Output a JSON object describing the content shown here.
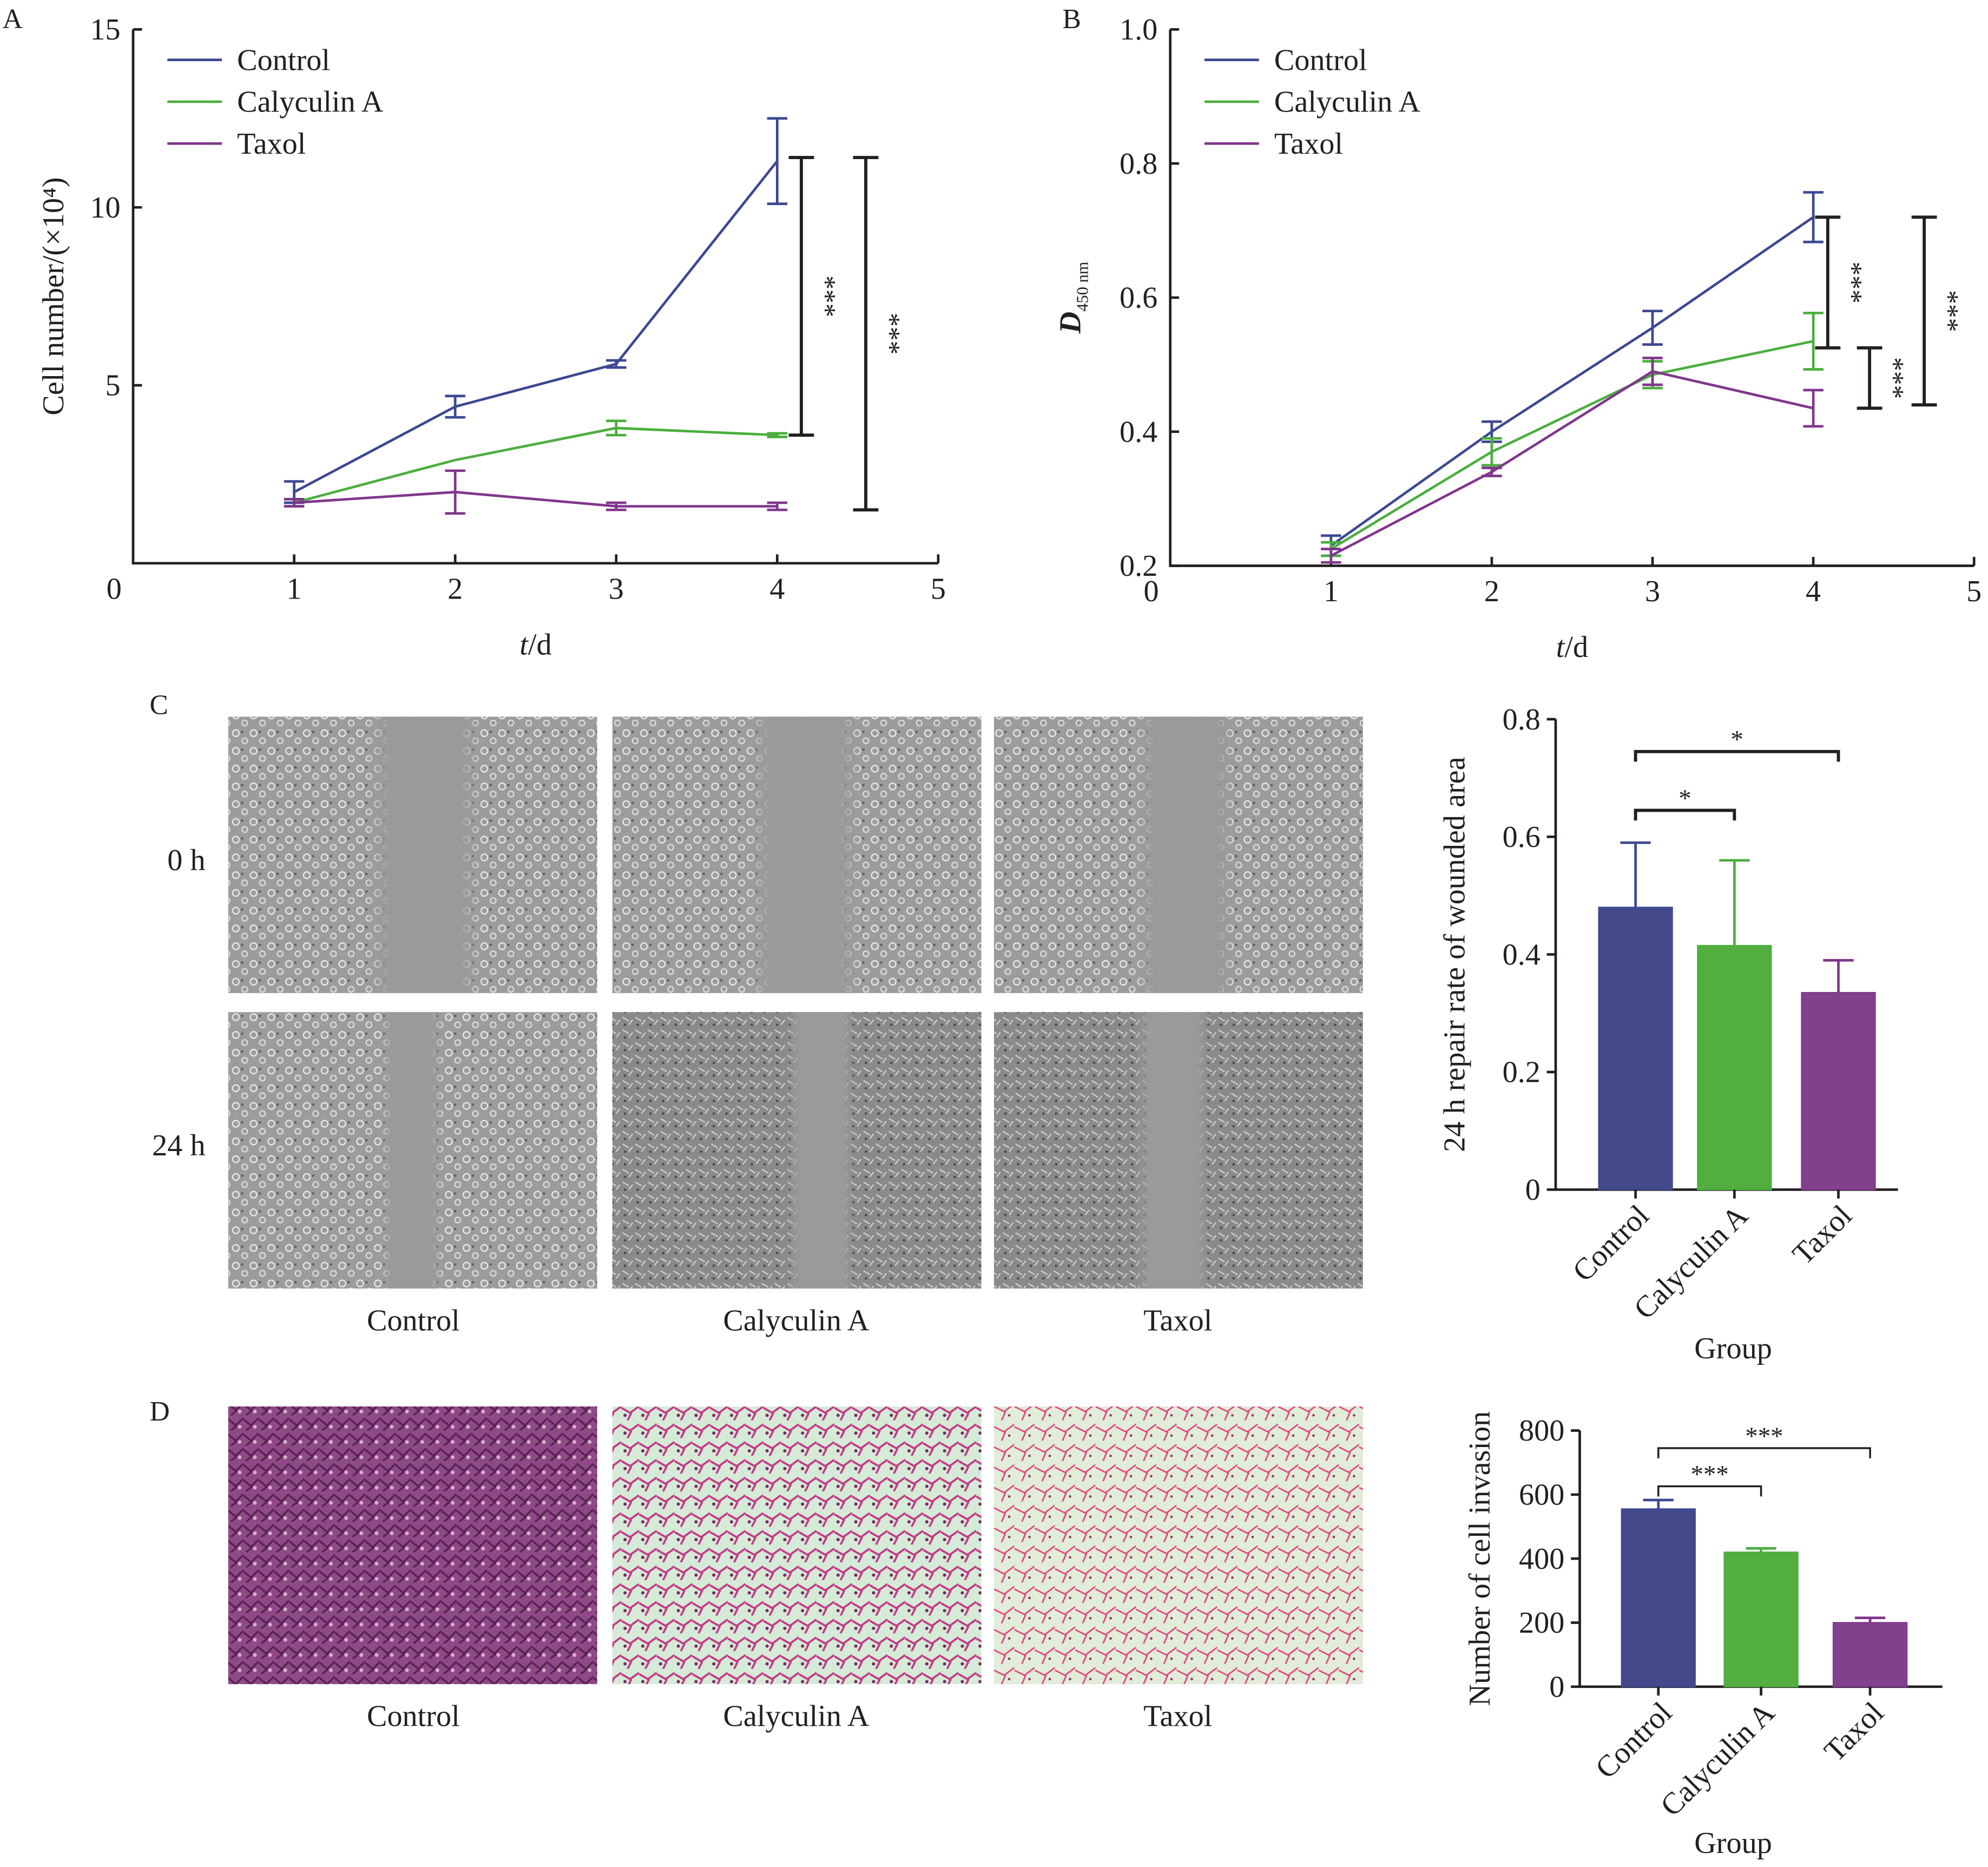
{
  "panel_labels": [
    "A",
    "B",
    "C",
    "D"
  ],
  "colors": {
    "Control": "#3c4891",
    "Calyculin A": "#4bae3e",
    "Taxol": "#80368c",
    "axis": "#231f20"
  },
  "images": {
    "row_labels": [
      "0 h",
      "24 h"
    ],
    "wound_columns": [
      "Control",
      "Calyculin A",
      "Taxol"
    ],
    "invasion_columns": [
      "Control",
      "Calyculin A",
      "Taxol"
    ]
  },
  "chart_data": [
    {
      "id": "A",
      "type": "line",
      "xlabel_italic": "t",
      "xlabel_rest": "/d",
      "ylabel": "Cell number/(×10⁴)",
      "xlim": [
        0,
        5
      ],
      "ylim": [
        0,
        15
      ],
      "xticks": [
        "0",
        "1",
        "2",
        "3",
        "4",
        "5"
      ],
      "yticks": [
        {
          "v": 5,
          "t": "5"
        },
        {
          "v": 10,
          "t": "10"
        },
        {
          "v": 15,
          "t": "15"
        }
      ],
      "x": [
        1,
        2,
        3,
        4
      ],
      "legend": "top-left",
      "series": [
        {
          "name": "Control",
          "values": [
            2.0,
            4.4,
            5.6,
            11.3
          ],
          "err": [
            0.3,
            0.3,
            0.1,
            1.2
          ]
        },
        {
          "name": "Calyculin A",
          "values": [
            1.7,
            2.9,
            3.8,
            3.6
          ],
          "err": [
            0.1,
            0,
            0.2,
            0.05
          ]
        },
        {
          "name": "Taxol",
          "values": [
            1.7,
            2.0,
            1.6,
            1.6
          ],
          "err": [
            0.1,
            0.6,
            0.1,
            0.1
          ]
        }
      ],
      "annotations": [
        {
          "x": 4.15,
          "y1": 3.6,
          "y2": 11.4,
          "label": "***"
        },
        {
          "x": 4.55,
          "y1": 1.5,
          "y2": 11.4,
          "label": "***"
        }
      ]
    },
    {
      "id": "B",
      "type": "line",
      "xlabel_italic": "t",
      "xlabel_rest": "/d",
      "ylabel": "D",
      "ylabel_sub": "450 nm",
      "xlim": [
        0,
        5
      ],
      "ylim": [
        0.2,
        1.0
      ],
      "xticks": [
        "0",
        "1",
        "2",
        "3",
        "4",
        "5"
      ],
      "yticks": [
        {
          "v": 0.2,
          "t": "0.2"
        },
        {
          "v": 0.4,
          "t": "0.4"
        },
        {
          "v": 0.6,
          "t": "0.6"
        },
        {
          "v": 0.8,
          "t": "0.8"
        },
        {
          "v": 1.0,
          "t": "1.0"
        }
      ],
      "x": [
        1,
        2,
        3,
        4
      ],
      "legend": "top-left",
      "series": [
        {
          "name": "Control",
          "values": [
            0.23,
            0.4,
            0.555,
            0.72
          ],
          "err": [
            0.015,
            0.015,
            0.025,
            0.037
          ]
        },
        {
          "name": "Calyculin A",
          "values": [
            0.225,
            0.37,
            0.485,
            0.535
          ],
          "err": [
            0.01,
            0.02,
            0.02,
            0.042
          ]
        },
        {
          "name": "Taxol",
          "values": [
            0.215,
            0.34,
            0.49,
            0.435
          ],
          "err": [
            0.01,
            0.006,
            0.02,
            0.027
          ]
        }
      ],
      "annotations": [
        {
          "x": 4.09,
          "y1": 0.525,
          "y2": 0.72,
          "label": "***"
        },
        {
          "x": 4.35,
          "y1": 0.435,
          "y2": 0.525,
          "label": "***"
        },
        {
          "x": 4.69,
          "y1": 0.44,
          "y2": 0.72,
          "label": "***"
        }
      ]
    },
    {
      "id": "C",
      "type": "bar",
      "xlabel": "Group",
      "ylabel": "24 h repair rate of wounded area",
      "ylim": [
        0,
        0.8
      ],
      "yticks": [
        {
          "v": 0,
          "t": "0"
        },
        {
          "v": 0.2,
          "t": "0.2"
        },
        {
          "v": 0.4,
          "t": "0.4"
        },
        {
          "v": 0.6,
          "t": "0.6"
        },
        {
          "v": 0.8,
          "t": "0.8"
        }
      ],
      "categories": [
        "Control",
        "Calyculin A",
        "Taxol"
      ],
      "values": [
        0.48,
        0.415,
        0.335
      ],
      "err": [
        0.11,
        0.145,
        0.055
      ],
      "annotations": [
        {
          "from": 0,
          "to": 2,
          "y": 0.745,
          "label": "*"
        },
        {
          "from": 0,
          "to": 1,
          "y": 0.645,
          "label": "*"
        }
      ]
    },
    {
      "id": "D",
      "type": "bar",
      "xlabel": "Group",
      "ylabel": "Number of cell invasion",
      "ylim": [
        0,
        800
      ],
      "yticks": [
        {
          "v": 0,
          "t": "0"
        },
        {
          "v": 200,
          "t": "200"
        },
        {
          "v": 400,
          "t": "400"
        },
        {
          "v": 600,
          "t": "600"
        },
        {
          "v": 800,
          "t": "800"
        }
      ],
      "categories": [
        "Control",
        "Calyculin A",
        "Taxol"
      ],
      "values": [
        555,
        420,
        200
      ],
      "err": [
        28,
        12,
        15
      ],
      "annotations": [
        {
          "from": 0,
          "to": 2,
          "y": 745,
          "label": "***"
        },
        {
          "from": 0,
          "to": 1,
          "y": 626,
          "label": "***"
        }
      ]
    }
  ]
}
